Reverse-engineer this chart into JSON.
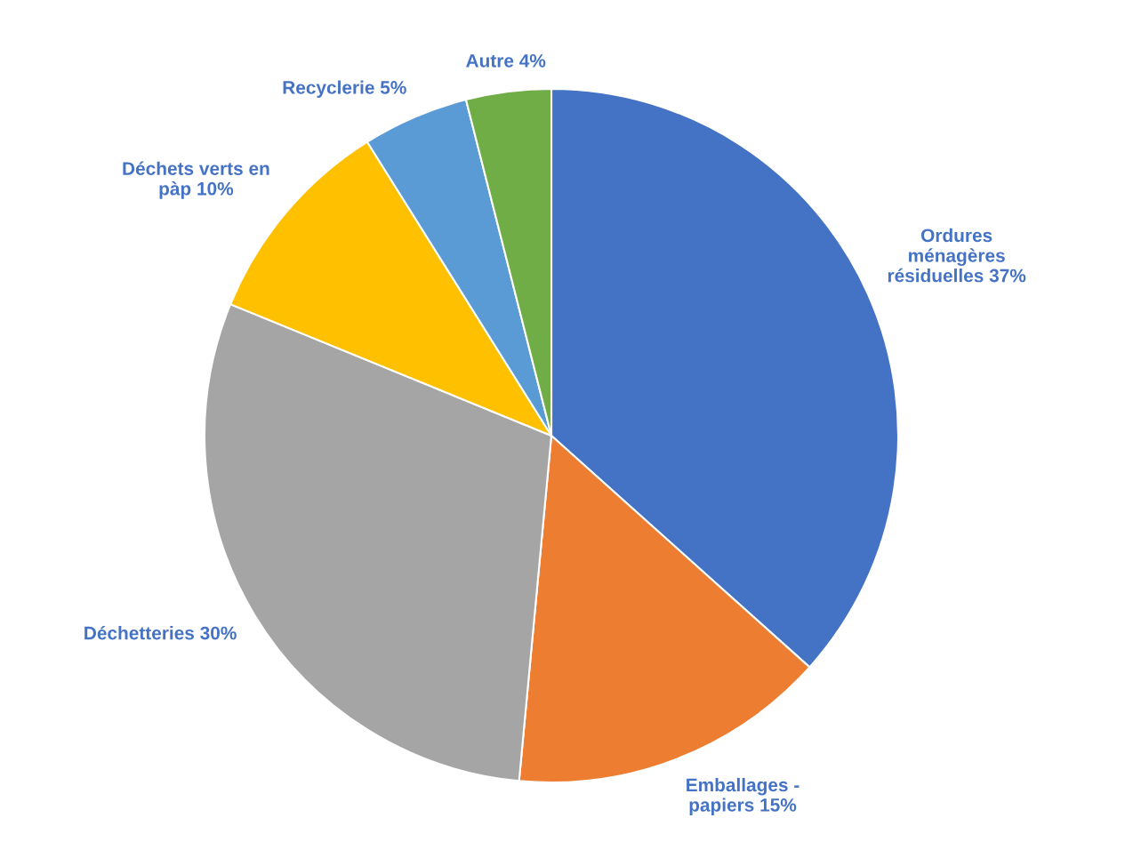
{
  "chart_data": {
    "type": "pie",
    "categories": [
      "Ordures ménagères résiduelles",
      "Emballages - papiers",
      "Déchetteries",
      "Déchets verts en pàp",
      "Recyclerie",
      "Autre"
    ],
    "values": [
      37,
      15,
      30,
      10,
      5,
      4
    ],
    "value_labels": [
      "37%",
      "15%",
      "30%",
      "10%",
      "5%",
      "4%"
    ],
    "colors": [
      "#4472c4",
      "#ed7d31",
      "#a5a5a5",
      "#ffc000",
      "#5b9bd5",
      "#70ad47"
    ]
  }
}
